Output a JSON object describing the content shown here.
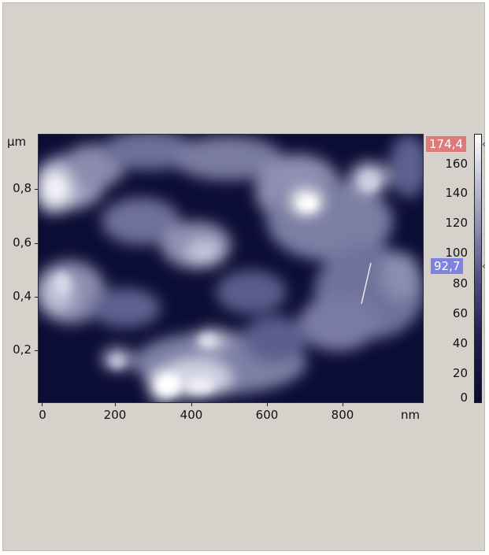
{
  "image": {
    "y_unit": "µm",
    "x_unit": "nm",
    "y_ticks": [
      "0,8",
      "0,6",
      "0,4",
      "0,2"
    ],
    "x_ticks": [
      "0",
      "200",
      "400",
      "600",
      "800"
    ],
    "scan_line_color": "#e8e8f0"
  },
  "colorbar": {
    "max_label": "174,4",
    "current_label": "92,7",
    "ticks": [
      "160",
      "140",
      "120",
      "100",
      "80",
      "60",
      "40",
      "20",
      "0"
    ],
    "max_badge_color": "#de7a7a",
    "current_badge_color": "#7e82e0"
  },
  "colors": {
    "background": "#d6d2cb",
    "low": "#0b0c33",
    "high": "#ffffff"
  }
}
